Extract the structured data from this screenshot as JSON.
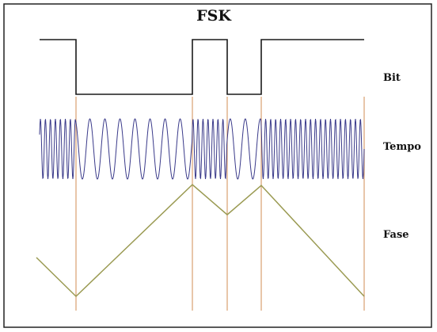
{
  "title": "FSK",
  "rows": {
    "bit": "Bit",
    "tempo": "Tempo",
    "fase": "Fase"
  },
  "bit_sequence": [
    1,
    0,
    1,
    0,
    1
  ],
  "colors": {
    "frame": "#222222",
    "bit_trace": "#1a1a1a",
    "bit_trace_top": "#5a3a5a",
    "carrier": "#3a3a8a",
    "divider": "#d9a070",
    "phase": "#9a9a52"
  }
}
